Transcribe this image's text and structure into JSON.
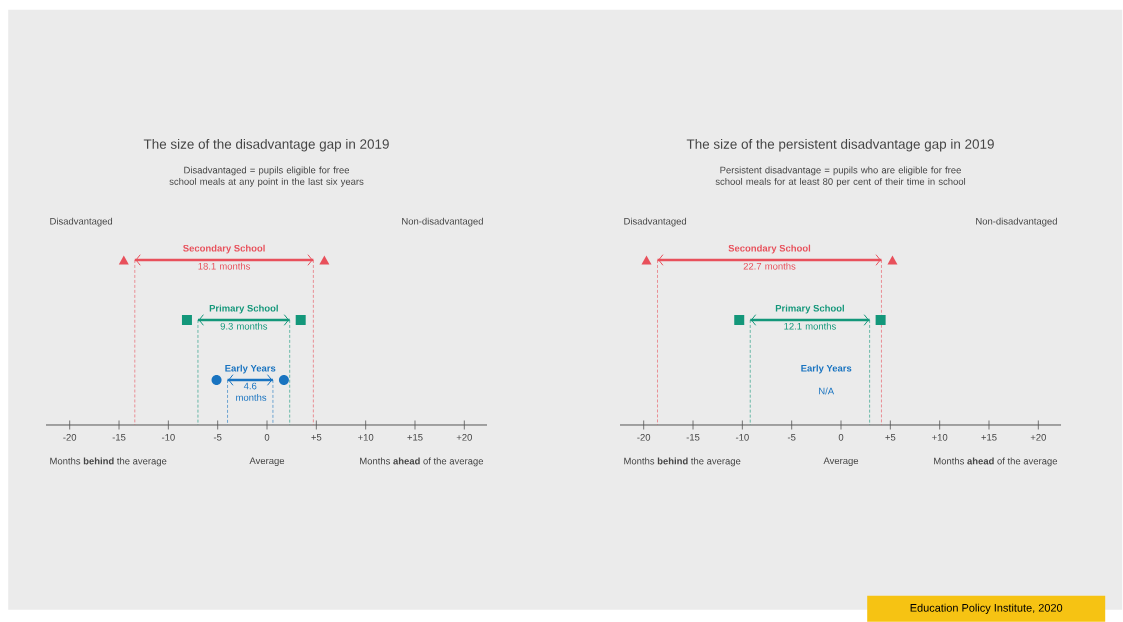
{
  "chart_data": [
    {
      "type": "bar",
      "orientation": "horizontal",
      "title": "The size of the disadvantage gap in 2019",
      "subtitle": "Disadvantaged = pupils eligible for free school meals at any point in the last six years",
      "categories": [
        "Secondary School",
        "Primary School",
        "Early Years"
      ],
      "values": [
        18.1,
        9.3,
        4.6
      ],
      "base": [
        -13.4,
        -7.0,
        -4.0
      ],
      "colors": [
        "#e8505b",
        "#13977a",
        "#1873c0"
      ],
      "value_labels": [
        "18.1 months",
        "9.3 months",
        "4.6 months"
      ],
      "ref_lines": [
        {
          "axis": "x",
          "value": -13.4,
          "color": "#e8505b",
          "line_style": "dashed"
        },
        {
          "axis": "x",
          "value": 4.7,
          "color": "#e8505b",
          "line_style": "dashed"
        },
        {
          "axis": "x",
          "value": -7.0,
          "color": "#13977a",
          "line_style": "dashed"
        },
        {
          "axis": "x",
          "value": 2.3,
          "color": "#13977a",
          "line_style": "dashed"
        },
        {
          "axis": "x",
          "value": -4.0,
          "color": "#1873c0",
          "line_style": "dashed"
        },
        {
          "axis": "x",
          "value": 0.6,
          "color": "#1873c0",
          "line_style": "dashed"
        }
      ],
      "xlim": [
        -22.4,
        22.3
      ],
      "xticks": [
        -20,
        -15,
        -10,
        -5,
        0,
        {
          "value": 5,
          "label": "+5"
        },
        {
          "value": 10,
          "label": "+10"
        },
        {
          "value": 15,
          "label": "+15"
        },
        {
          "value": 20,
          "label": "+20"
        }
      ],
      "annotations": [
        "Disadvantaged",
        "Non-disadvantaged",
        "Months **behind** the average",
        "Average",
        "Months **ahead** of the average"
      ]
    },
    {
      "type": "bar",
      "orientation": "horizontal",
      "title": "The size of the persistent disadvantage gap in 2019",
      "subtitle": "Persistent disadvantage = pupils who are eligible for free school meals for at least 80 per cent of their time in school",
      "categories": [
        "Secondary School",
        "Primary School",
        "Early Years"
      ],
      "values": [
        22.7,
        12.1,
        null
      ],
      "base": [
        -18.6,
        -9.2,
        null
      ],
      "colors": [
        "#e8505b",
        "#13977a",
        "#1873c0"
      ],
      "value_labels": [
        "22.7 months",
        "12.1 months",
        "N/A"
      ],
      "ref_lines": [
        {
          "axis": "x",
          "value": -18.6,
          "color": "#e8505b",
          "line_style": "dashed"
        },
        {
          "axis": "x",
          "value": 4.1,
          "color": "#e8505b",
          "line_style": "dashed"
        },
        {
          "axis": "x",
          "value": -9.2,
          "color": "#13977a",
          "line_style": "dashed"
        },
        {
          "axis": "x",
          "value": 2.9,
          "color": "#13977a",
          "line_style": "dashed"
        }
      ],
      "xlim": [
        -22.4,
        22.3
      ],
      "xticks": [
        -20,
        -15,
        -10,
        -5,
        0,
        {
          "value": 5,
          "label": "+5"
        },
        {
          "value": 10,
          "label": "+10"
        },
        {
          "value": 15,
          "label": "+15"
        },
        {
          "value": 20,
          "label": "+20"
        }
      ],
      "annotations": [
        "Disadvantaged",
        "Non-disadvantaged",
        "Months **behind** the average",
        "Average",
        "Months **ahead** of the average",
        "Education Policy Institute, 2020"
      ]
    }
  ]
}
